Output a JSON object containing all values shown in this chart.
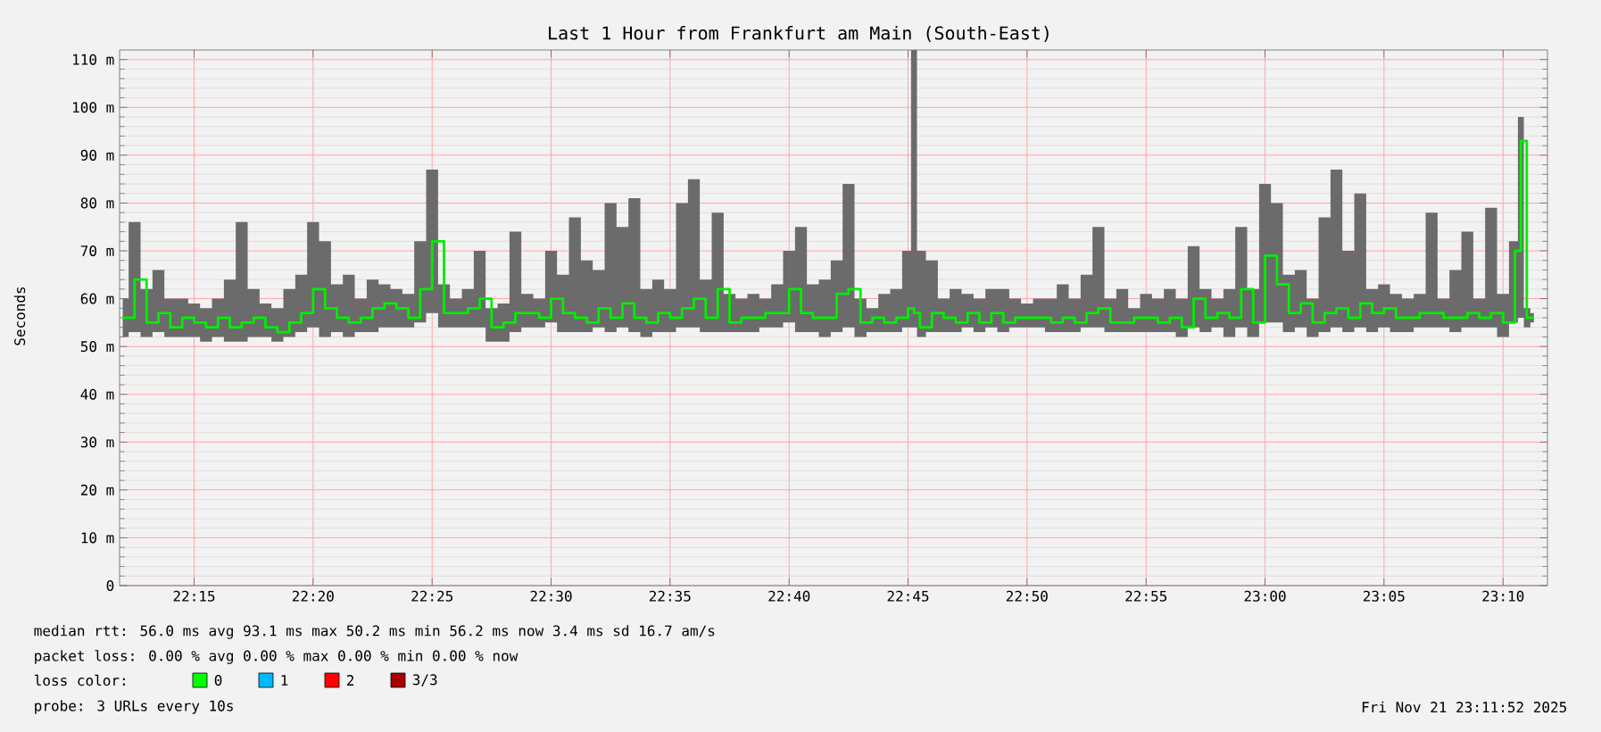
{
  "chart_data": {
    "type": "step",
    "title": "Last 1 Hour from Frankfurt am Main (South-East)",
    "ylabel": "Seconds",
    "xlim": [
      22.1978,
      23.1978
    ],
    "xticks": [
      {
        "value": 22.25,
        "label": "22:15"
      },
      {
        "value": 22.3333,
        "label": "22:20"
      },
      {
        "value": 22.4167,
        "label": "22:25"
      },
      {
        "value": 22.5,
        "label": "22:30"
      },
      {
        "value": 22.5833,
        "label": "22:35"
      },
      {
        "value": 22.6667,
        "label": "22:40"
      },
      {
        "value": 22.75,
        "label": "22:45"
      },
      {
        "value": 22.8333,
        "label": "22:50"
      },
      {
        "value": 22.9167,
        "label": "22:55"
      },
      {
        "value": 23.0,
        "label": "23:00"
      },
      {
        "value": 23.0833,
        "label": "23:05"
      },
      {
        "value": 23.1667,
        "label": "23:10"
      }
    ],
    "ylim": [
      0,
      112
    ],
    "yticks": [
      0,
      {
        "value": 10,
        "label": "10 m"
      },
      {
        "value": 20,
        "label": "20 m"
      },
      {
        "value": 30,
        "label": "30 m"
      },
      {
        "value": 40,
        "label": "40 m"
      },
      {
        "value": 50,
        "label": "50 m"
      },
      {
        "value": 60,
        "label": "60 m"
      },
      {
        "value": 70,
        "label": "70 m"
      },
      {
        "value": 80,
        "label": "80 m"
      },
      {
        "value": 90,
        "label": "90 m"
      },
      {
        "value": 100,
        "label": "100 m"
      },
      {
        "value": 110,
        "label": "110 m"
      }
    ],
    "grid": true,
    "marker": "none",
    "line_style": "solid",
    "x": [
      22.2,
      22.2083,
      22.2167,
      22.225,
      22.2333,
      22.2417,
      22.25,
      22.2583,
      22.2667,
      22.275,
      22.2833,
      22.2917,
      22.3,
      22.3083,
      22.3167,
      22.325,
      22.3333,
      22.3417,
      22.35,
      22.3583,
      22.3667,
      22.375,
      22.3833,
      22.3917,
      22.4,
      22.4083,
      22.4167,
      22.425,
      22.4333,
      22.4417,
      22.45,
      22.4583,
      22.4667,
      22.475,
      22.4833,
      22.4917,
      22.5,
      22.5083,
      22.5167,
      22.525,
      22.5333,
      22.5417,
      22.55,
      22.5583,
      22.5667,
      22.575,
      22.5833,
      22.5917,
      22.6,
      22.6083,
      22.6167,
      22.625,
      22.6333,
      22.6417,
      22.65,
      22.6583,
      22.6667,
      22.675,
      22.6833,
      22.6917,
      22.7,
      22.7083,
      22.7167,
      22.725,
      22.7333,
      22.7417,
      22.75,
      22.7542,
      22.7583,
      22.7667,
      22.775,
      22.7833,
      22.7917,
      22.8,
      22.8083,
      22.8167,
      22.825,
      22.8333,
      22.8417,
      22.85,
      22.8583,
      22.8667,
      22.875,
      22.8833,
      22.8917,
      22.9,
      22.9083,
      22.9167,
      22.925,
      22.9333,
      22.9417,
      22.95,
      22.9583,
      22.9667,
      22.975,
      22.9833,
      22.9917,
      23.0,
      23.0083,
      23.0167,
      23.025,
      23.0333,
      23.0417,
      23.05,
      23.0583,
      23.0667,
      23.075,
      23.0833,
      23.0917,
      23.1,
      23.1083,
      23.1167,
      23.125,
      23.1333,
      23.1417,
      23.15,
      23.1583,
      23.1667,
      23.175,
      23.1792,
      23.1833,
      23.1883
    ],
    "series": [
      {
        "color": "#00ee00",
        "values": [
          56,
          64,
          55,
          57,
          54,
          56,
          55,
          54,
          56,
          54,
          55,
          56,
          54,
          53,
          55,
          57,
          62,
          58,
          56,
          55,
          56,
          58,
          59,
          58,
          56,
          62,
          72,
          57,
          57,
          58,
          60,
          54,
          55,
          57,
          57,
          56,
          60,
          57,
          56,
          55,
          58,
          56,
          59,
          56,
          55,
          57,
          56,
          58,
          60,
          56,
          62,
          55,
          56,
          56,
          57,
          57,
          62,
          57,
          56,
          56,
          61,
          62,
          55,
          56,
          55,
          56,
          58,
          57,
          54,
          57,
          56,
          55,
          57,
          55,
          57,
          55,
          56,
          56,
          56,
          55,
          56,
          55,
          57,
          58,
          55,
          55,
          56,
          56,
          55,
          56,
          54,
          60,
          56,
          57,
          56,
          62,
          55,
          69,
          63,
          57,
          59,
          55,
          57,
          58,
          56,
          59,
          57,
          58,
          56,
          56,
          57,
          57,
          56,
          56,
          57,
          56,
          57,
          55,
          70,
          93,
          56,
          56
        ],
        "lower": [
          52,
          53,
          52,
          53,
          52,
          52,
          52,
          51,
          52,
          51,
          51,
          52,
          52,
          51,
          52,
          53,
          54,
          52,
          53,
          52,
          53,
          53,
          54,
          54,
          54,
          55,
          57,
          54,
          54,
          54,
          54,
          51,
          51,
          53,
          54,
          54,
          55,
          53,
          53,
          53,
          54,
          53,
          54,
          53,
          52,
          53,
          53,
          54,
          54,
          53,
          53,
          53,
          53,
          53,
          54,
          54,
          55,
          53,
          53,
          52,
          53,
          54,
          52,
          53,
          53,
          53,
          54,
          54,
          52,
          53,
          53,
          53,
          54,
          53,
          54,
          53,
          54,
          54,
          54,
          53,
          53,
          53,
          54,
          54,
          53,
          53,
          53,
          53,
          53,
          53,
          52,
          54,
          53,
          54,
          52,
          54,
          52,
          55,
          55,
          53,
          54,
          52,
          53,
          54,
          53,
          54,
          53,
          54,
          53,
          53,
          54,
          54,
          54,
          53,
          54,
          54,
          54,
          52,
          55,
          56,
          54,
          55
        ],
        "upper": [
          60,
          76,
          62,
          66,
          60,
          60,
          59,
          58,
          60,
          64,
          76,
          62,
          59,
          58,
          62,
          65,
          76,
          72,
          63,
          65,
          60,
          64,
          63,
          62,
          61,
          72,
          87,
          63,
          60,
          62,
          70,
          58,
          59,
          74,
          61,
          60,
          70,
          65,
          77,
          68,
          66,
          80,
          75,
          81,
          62,
          64,
          62,
          80,
          85,
          64,
          78,
          61,
          60,
          61,
          60,
          63,
          70,
          75,
          63,
          64,
          68,
          84,
          60,
          58,
          61,
          62,
          70,
          112,
          70,
          68,
          60,
          62,
          61,
          60,
          62,
          62,
          60,
          59,
          60,
          60,
          63,
          60,
          65,
          75,
          60,
          62,
          58,
          61,
          60,
          62,
          60,
          71,
          62,
          60,
          62,
          75,
          62,
          84,
          80,
          65,
          66,
          60,
          77,
          87,
          70,
          82,
          62,
          63,
          61,
          60,
          61,
          78,
          60,
          66,
          74,
          60,
          79,
          61,
          72,
          98,
          58,
          57
        ]
      }
    ],
    "annotations": [
      "median rtt:  56.0 ms avg  93.1 ms max  50.2 ms min  56.2 ms now  3.4 ms sd  16.7   am/s",
      "packet loss: 0.00 % avg  0.00 % max  0.00 % min  0.00 % now",
      "loss color:",
      "0",
      "1",
      "2",
      "3/3",
      "probe:       3 URLs every 10s",
      "Fri Nov 21 23:11:52 2025"
    ]
  }
}
